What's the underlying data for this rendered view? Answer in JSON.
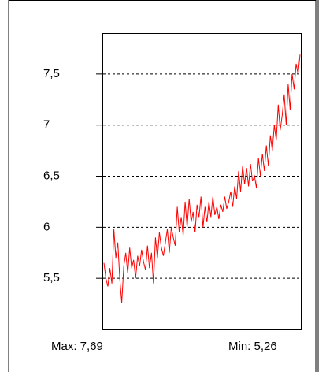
{
  "chart_data": {
    "type": "line",
    "values": [
      5.65,
      5.5,
      5.42,
      5.6,
      5.45,
      5.98,
      5.7,
      5.85,
      5.5,
      5.26,
      5.62,
      5.75,
      5.55,
      5.8,
      5.6,
      5.68,
      5.5,
      5.72,
      5.62,
      5.78,
      5.66,
      5.58,
      5.82,
      5.6,
      5.75,
      5.45,
      5.9,
      5.7,
      5.95,
      5.8,
      5.72,
      5.85,
      5.98,
      5.75,
      6.0,
      5.9,
      5.82,
      6.2,
      5.95,
      6.1,
      5.92,
      6.25,
      6.0,
      6.28,
      6.05,
      6.15,
      5.95,
      6.22,
      6.1,
      6.3,
      6.0,
      6.2,
      6.05,
      6.25,
      6.1,
      6.3,
      6.12,
      6.2,
      6.08,
      6.22,
      6.15,
      6.3,
      6.18,
      6.25,
      6.35,
      6.2,
      6.4,
      6.28,
      6.55,
      6.35,
      6.6,
      6.42,
      6.58,
      6.4,
      6.62,
      6.45,
      6.5,
      6.38,
      6.68,
      6.5,
      6.72,
      6.55,
      6.8,
      6.6,
      6.9,
      6.75,
      7.0,
      6.85,
      7.2,
      6.95,
      7.1,
      7.3,
      7.0,
      7.4,
      7.15,
      7.5,
      7.35,
      7.6,
      7.5,
      7.69
    ],
    "color": "#ff0000",
    "ylim": [
      5.0,
      7.9
    ],
    "yticks": [
      {
        "value": 5.5,
        "label": "5,5"
      },
      6,
      {
        "value": 6.5,
        "label": "6,5"
      },
      7,
      {
        "value": 7.5,
        "label": "7,5"
      }
    ],
    "grid": true,
    "annotations": [
      "Max: 7,69",
      "Min: 5,26"
    ]
  }
}
